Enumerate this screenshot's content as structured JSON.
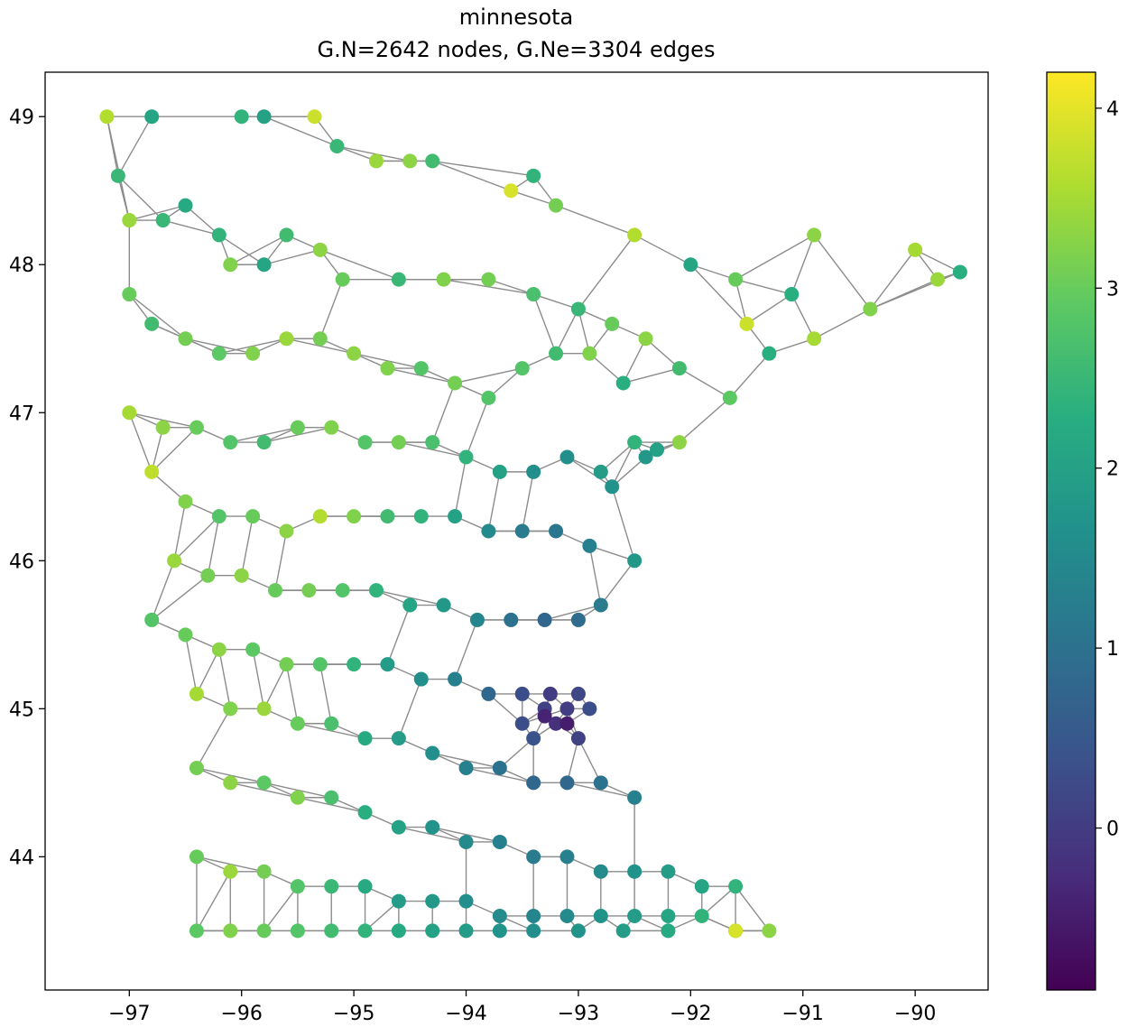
{
  "chart_data": {
    "type": "scatter",
    "subtype": "graph-network",
    "title_line1": "minnesota",
    "title_line2": "G.N=2642 nodes, G.Ne=3304 edges",
    "xlabel": "",
    "ylabel": "",
    "xlim": [
      -97.75,
      -89.35
    ],
    "ylim": [
      43.1,
      49.3
    ],
    "x_ticks": [
      -97,
      -96,
      -95,
      -94,
      -93,
      -92,
      -91,
      -90
    ],
    "x_tick_labels": [
      "−97",
      "−96",
      "−95",
      "−94",
      "−93",
      "−92",
      "−91",
      "−90"
    ],
    "y_ticks": [
      44,
      45,
      46,
      47,
      48,
      49
    ],
    "y_tick_labels": [
      "44",
      "45",
      "46",
      "47",
      "48",
      "49"
    ],
    "grid": false,
    "colormap": "viridis",
    "colorbar": {
      "vmin": -0.9,
      "vmax": 4.2,
      "ticks": [
        0,
        1,
        2,
        3,
        4
      ],
      "tick_labels": [
        "0",
        "1",
        "2",
        "3",
        "4"
      ]
    },
    "center_lon": -93.2,
    "center_lat": 44.95,
    "nodes": [
      [
        -97.2,
        49.0,
        3.6
      ],
      [
        -96.8,
        49.0,
        2.1
      ],
      [
        -96.0,
        49.0,
        2.4
      ],
      [
        -95.8,
        49.0,
        2.0
      ],
      [
        -95.35,
        49.0,
        3.8
      ],
      [
        -95.15,
        48.8,
        2.5
      ],
      [
        -94.8,
        48.7,
        3.4
      ],
      [
        -94.5,
        48.7,
        3.3
      ],
      [
        -94.3,
        48.7,
        2.6
      ],
      [
        -93.4,
        48.6,
        2.4
      ],
      [
        -93.6,
        48.5,
        3.9
      ],
      [
        -93.2,
        48.4,
        3.1
      ],
      [
        -92.5,
        48.2,
        3.6
      ],
      [
        -92.0,
        48.0,
        2.1
      ],
      [
        -91.6,
        47.9,
        3.0
      ],
      [
        -90.9,
        48.2,
        3.3
      ],
      [
        -90.0,
        48.1,
        3.5
      ],
      [
        -89.8,
        47.9,
        3.4
      ],
      [
        -89.6,
        47.95,
        2.3
      ],
      [
        -90.4,
        47.7,
        3.2
      ],
      [
        -91.1,
        47.8,
        2.3
      ],
      [
        -91.5,
        47.6,
        3.8
      ],
      [
        -90.9,
        47.5,
        3.5
      ],
      [
        -91.3,
        47.4,
        2.3
      ],
      [
        -91.65,
        47.1,
        2.9
      ],
      [
        -92.1,
        46.8,
        3.3
      ],
      [
        -92.3,
        46.75,
        2.0
      ],
      [
        -92.5,
        46.8,
        2.4
      ],
      [
        -92.4,
        46.7,
        1.8
      ],
      [
        -92.7,
        46.5,
        1.7
      ],
      [
        -97.1,
        48.6,
        2.5
      ],
      [
        -97.0,
        48.3,
        3.4
      ],
      [
        -96.7,
        48.3,
        2.5
      ],
      [
        -96.5,
        48.4,
        2.2
      ],
      [
        -96.2,
        48.2,
        2.4
      ],
      [
        -96.1,
        48.0,
        3.2
      ],
      [
        -95.8,
        48.0,
        2.1
      ],
      [
        -95.6,
        48.2,
        2.6
      ],
      [
        -95.3,
        48.1,
        3.3
      ],
      [
        -95.1,
        47.9,
        3.0
      ],
      [
        -94.6,
        47.9,
        2.5
      ],
      [
        -94.2,
        47.9,
        3.2
      ],
      [
        -93.8,
        47.9,
        3.1
      ],
      [
        -93.4,
        47.8,
        2.7
      ],
      [
        -93.0,
        47.7,
        2.5
      ],
      [
        -92.7,
        47.6,
        3.0
      ],
      [
        -92.4,
        47.5,
        3.3
      ],
      [
        -92.1,
        47.3,
        2.6
      ],
      [
        -97.0,
        47.8,
        3.0
      ],
      [
        -96.8,
        47.6,
        2.6
      ],
      [
        -96.5,
        47.5,
        3.1
      ],
      [
        -96.2,
        47.4,
        2.9
      ],
      [
        -95.9,
        47.4,
        3.2
      ],
      [
        -95.6,
        47.5,
        3.4
      ],
      [
        -95.3,
        47.5,
        3.1
      ],
      [
        -95.0,
        47.4,
        3.3
      ],
      [
        -94.7,
        47.3,
        3.2
      ],
      [
        -94.4,
        47.3,
        2.8
      ],
      [
        -94.1,
        47.2,
        3.1
      ],
      [
        -93.8,
        47.1,
        2.8
      ],
      [
        -93.5,
        47.3,
        2.8
      ],
      [
        -93.2,
        47.4,
        2.6
      ],
      [
        -92.9,
        47.4,
        3.2
      ],
      [
        -92.6,
        47.2,
        2.3
      ],
      [
        -97.0,
        47.0,
        3.5
      ],
      [
        -96.7,
        46.9,
        3.3
      ],
      [
        -96.4,
        46.9,
        3.0
      ],
      [
        -96.1,
        46.8,
        2.8
      ],
      [
        -95.8,
        46.8,
        2.6
      ],
      [
        -95.5,
        46.9,
        3.0
      ],
      [
        -95.2,
        46.9,
        3.2
      ],
      [
        -94.9,
        46.8,
        2.8
      ],
      [
        -94.6,
        46.8,
        3.1
      ],
      [
        -94.3,
        46.8,
        2.7
      ],
      [
        -94.0,
        46.7,
        2.4
      ],
      [
        -93.7,
        46.6,
        2.0
      ],
      [
        -93.4,
        46.6,
        1.6
      ],
      [
        -93.1,
        46.7,
        1.6
      ],
      [
        -92.8,
        46.6,
        1.9
      ],
      [
        -96.8,
        46.6,
        3.7
      ],
      [
        -96.5,
        46.4,
        3.2
      ],
      [
        -96.2,
        46.3,
        2.8
      ],
      [
        -95.9,
        46.3,
        3.0
      ],
      [
        -95.6,
        46.2,
        3.3
      ],
      [
        -95.3,
        46.3,
        3.6
      ],
      [
        -95.0,
        46.3,
        3.2
      ],
      [
        -94.7,
        46.3,
        2.6
      ],
      [
        -94.4,
        46.3,
        2.4
      ],
      [
        -94.1,
        46.3,
        2.0
      ],
      [
        -93.8,
        46.2,
        1.5
      ],
      [
        -93.5,
        46.2,
        1.2
      ],
      [
        -93.2,
        46.2,
        1.1
      ],
      [
        -92.9,
        46.1,
        1.3
      ],
      [
        -92.5,
        46.0,
        1.8
      ],
      [
        -96.6,
        46.0,
        3.4
      ],
      [
        -96.3,
        45.9,
        3.1
      ],
      [
        -96.0,
        45.9,
        3.3
      ],
      [
        -95.7,
        45.8,
        3.0
      ],
      [
        -95.4,
        45.8,
        3.1
      ],
      [
        -95.1,
        45.8,
        2.8
      ],
      [
        -94.8,
        45.8,
        2.4
      ],
      [
        -94.5,
        45.7,
        2.1
      ],
      [
        -94.2,
        45.7,
        1.8
      ],
      [
        -93.9,
        45.6,
        1.4
      ],
      [
        -93.6,
        45.6,
        1.0
      ],
      [
        -93.3,
        45.6,
        0.8
      ],
      [
        -93.0,
        45.6,
        0.9
      ],
      [
        -92.8,
        45.7,
        1.2
      ],
      [
        -96.8,
        45.6,
        2.8
      ],
      [
        -96.5,
        45.5,
        3.0
      ],
      [
        -96.2,
        45.4,
        3.3
      ],
      [
        -95.9,
        45.4,
        2.9
      ],
      [
        -95.6,
        45.3,
        3.1
      ],
      [
        -95.3,
        45.3,
        2.8
      ],
      [
        -95.0,
        45.3,
        2.4
      ],
      [
        -94.7,
        45.3,
        1.9
      ],
      [
        -94.4,
        45.2,
        1.6
      ],
      [
        -94.1,
        45.2,
        1.3
      ],
      [
        -93.8,
        45.1,
        0.8
      ],
      [
        -93.5,
        45.1,
        0.3
      ],
      [
        -93.3,
        45.0,
        0.1
      ],
      [
        -93.1,
        45.0,
        0.0
      ],
      [
        -92.9,
        45.0,
        0.3
      ],
      [
        -93.2,
        44.9,
        -0.2
      ],
      [
        -93.0,
        44.8,
        0.1
      ],
      [
        -93.4,
        44.8,
        0.4
      ],
      [
        -96.4,
        45.1,
        3.5
      ],
      [
        -96.1,
        45.0,
        3.2
      ],
      [
        -95.8,
        45.0,
        3.4
      ],
      [
        -95.5,
        44.9,
        3.0
      ],
      [
        -95.2,
        44.9,
        2.7
      ],
      [
        -94.9,
        44.8,
        2.2
      ],
      [
        -94.6,
        44.8,
        1.9
      ],
      [
        -94.3,
        44.7,
        1.6
      ],
      [
        -94.0,
        44.6,
        1.3
      ],
      [
        -93.7,
        44.6,
        1.0
      ],
      [
        -93.4,
        44.5,
        0.8
      ],
      [
        -93.1,
        44.5,
        0.8
      ],
      [
        -92.8,
        44.5,
        1.0
      ],
      [
        -92.5,
        44.4,
        1.3
      ],
      [
        -96.4,
        44.6,
        3.1
      ],
      [
        -96.1,
        44.5,
        3.3
      ],
      [
        -95.8,
        44.5,
        2.9
      ],
      [
        -95.5,
        44.4,
        3.2
      ],
      [
        -95.2,
        44.4,
        2.7
      ],
      [
        -94.9,
        44.3,
        2.3
      ],
      [
        -94.6,
        44.2,
        2.0
      ],
      [
        -94.3,
        44.2,
        1.7
      ],
      [
        -94.0,
        44.1,
        1.5
      ],
      [
        -93.7,
        44.1,
        1.3
      ],
      [
        -93.4,
        44.0,
        1.2
      ],
      [
        -93.1,
        44.0,
        1.3
      ],
      [
        -92.8,
        43.9,
        1.5
      ],
      [
        -92.5,
        43.9,
        1.7
      ],
      [
        -92.2,
        43.9,
        1.9
      ],
      [
        -91.9,
        43.8,
        2.1
      ],
      [
        -91.6,
        43.8,
        2.4
      ],
      [
        -96.4,
        44.0,
        3.0
      ],
      [
        -96.1,
        43.9,
        3.4
      ],
      [
        -95.8,
        43.9,
        3.1
      ],
      [
        -95.5,
        43.8,
        2.8
      ],
      [
        -95.2,
        43.8,
        2.5
      ],
      [
        -94.9,
        43.8,
        2.2
      ],
      [
        -94.6,
        43.7,
        1.9
      ],
      [
        -94.3,
        43.7,
        1.8
      ],
      [
        -94.0,
        43.7,
        1.6
      ],
      [
        -93.7,
        43.6,
        1.5
      ],
      [
        -93.4,
        43.6,
        1.4
      ],
      [
        -93.1,
        43.6,
        1.5
      ],
      [
        -92.8,
        43.6,
        1.7
      ],
      [
        -92.5,
        43.6,
        1.9
      ],
      [
        -92.2,
        43.6,
        2.1
      ],
      [
        -91.9,
        43.6,
        2.4
      ],
      [
        -91.6,
        43.5,
        2.7
      ],
      [
        -91.3,
        43.5,
        3.3
      ],
      [
        -96.4,
        43.5,
        2.9
      ],
      [
        -96.1,
        43.5,
        3.2
      ],
      [
        -95.8,
        43.5,
        3.0
      ],
      [
        -95.5,
        43.5,
        2.8
      ],
      [
        -95.2,
        43.5,
        2.6
      ],
      [
        -94.9,
        43.5,
        2.4
      ],
      [
        -94.6,
        43.5,
        2.2
      ],
      [
        -94.3,
        43.5,
        2.0
      ],
      [
        -94.0,
        43.5,
        1.9
      ],
      [
        -93.7,
        43.5,
        1.7
      ],
      [
        -93.4,
        43.5,
        1.6
      ],
      [
        -93.0,
        43.5,
        1.7
      ],
      [
        -92.6,
        43.5,
        1.9
      ],
      [
        -92.2,
        43.5,
        2.2
      ],
      [
        -91.6,
        43.5,
        3.9
      ],
      [
        -93.3,
        44.95,
        -0.4
      ],
      [
        -93.1,
        44.9,
        -0.5
      ],
      [
        -93.25,
        45.1,
        0.0
      ],
      [
        -93.0,
        45.1,
        0.2
      ],
      [
        -93.5,
        44.9,
        0.3
      ]
    ]
  }
}
